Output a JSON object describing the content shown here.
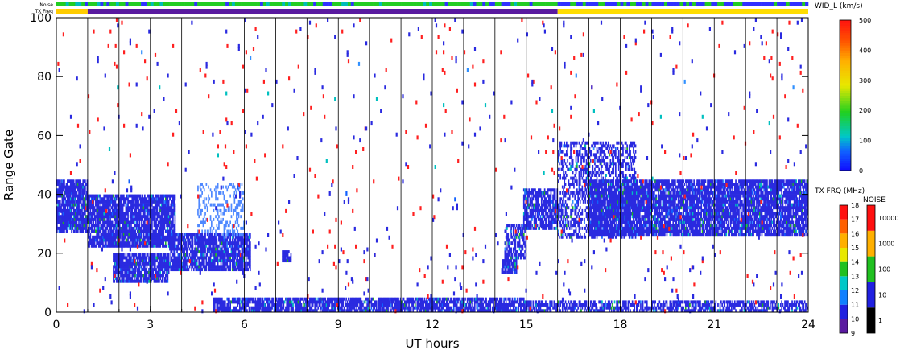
{
  "chart_data": {
    "type": "heatmap",
    "x_label": "UT hours",
    "y_label": "Range Gate",
    "x_range": [
      0,
      24
    ],
    "y_range": [
      0,
      100
    ],
    "x_ticks": [
      0,
      3,
      6,
      9,
      12,
      15,
      18,
      21,
      24
    ],
    "y_ticks": [
      0,
      20,
      40,
      60,
      80,
      100
    ],
    "vertical_hour_lines": [
      1,
      2,
      3,
      4,
      5,
      6,
      7,
      8,
      9,
      10,
      11,
      12,
      13,
      14,
      15,
      16,
      17,
      18,
      19,
      20,
      21,
      22,
      23
    ],
    "top_strips": [
      {
        "label": "Noise",
        "segments": [
          {
            "from": 0,
            "to": 16,
            "color": "mixed-green-blue"
          },
          {
            "from": 16,
            "to": 24,
            "color": "mixed-blue-green"
          }
        ]
      },
      {
        "label": "TX Freq",
        "segments": [
          {
            "from": 0,
            "to": 1,
            "color": "#ffcc00"
          },
          {
            "from": 1,
            "to": 16,
            "color": "#5a1aa0"
          },
          {
            "from": 16,
            "to": 24,
            "color": "#ffdd00"
          }
        ]
      }
    ],
    "scatter_regions": [
      {
        "x_from": 0,
        "x_to": 1,
        "y_from": 27,
        "y_to": 45,
        "color": "#2a2ae0",
        "density": 0.85
      },
      {
        "x_from": 1,
        "x_to": 3.8,
        "y_from": 22,
        "y_to": 40,
        "color": "#2a2ae0",
        "density": 0.85
      },
      {
        "x_from": 1.8,
        "x_to": 3.6,
        "y_from": 10,
        "y_to": 20,
        "color": "#2a2ae0",
        "density": 0.85
      },
      {
        "x_from": 3.6,
        "x_to": 4.8,
        "y_from": 14,
        "y_to": 27,
        "color": "#2a2ae0",
        "density": 0.8
      },
      {
        "x_from": 4.8,
        "x_to": 6.2,
        "y_from": 14,
        "y_to": 27,
        "color": "#2a2ae0",
        "density": 0.8
      },
      {
        "x_from": 4.5,
        "x_to": 6.0,
        "y_from": 26,
        "y_to": 44,
        "color": "#4f88ff",
        "density": 0.3
      },
      {
        "x_from": 7.2,
        "x_to": 7.5,
        "y_from": 17,
        "y_to": 21,
        "color": "#2a2ae0",
        "density": 0.9
      },
      {
        "x_from": 5.0,
        "x_to": 15.0,
        "y_from": 0,
        "y_to": 5,
        "color": "#2a2ae0",
        "density": 0.8
      },
      {
        "x_from": 14.2,
        "x_to": 14.7,
        "y_from": 13,
        "y_to": 18,
        "color": "#2a2ae0",
        "density": 0.9
      },
      {
        "x_from": 14.3,
        "x_to": 15.0,
        "y_from": 18,
        "y_to": 30,
        "color": "#2a2ae0",
        "density": 0.6
      },
      {
        "x_from": 14.9,
        "x_to": 16.0,
        "y_from": 28,
        "y_to": 42,
        "color": "#2a2ae0",
        "density": 0.75
      },
      {
        "x_from": 16.0,
        "x_to": 18.5,
        "y_from": 25,
        "y_to": 58,
        "color": "#2a2ae0",
        "density": 0.45
      },
      {
        "x_from": 17.0,
        "x_to": 24.0,
        "y_from": 26,
        "y_to": 45,
        "color": "#2a2ae0",
        "density": 0.85
      },
      {
        "x_from": 15.0,
        "x_to": 24.0,
        "y_from": 0,
        "y_to": 4,
        "color": "#2a2ae0",
        "density": 0.6
      },
      {
        "x_from": 0,
        "x_to": 24,
        "y_from": 0,
        "y_to": 100,
        "color": "#ff2020",
        "density": 0.004
      },
      {
        "x_from": 0,
        "x_to": 24,
        "y_from": 0,
        "y_to": 100,
        "color": "#2a2ae0",
        "density": 0.006
      }
    ],
    "colorbars": [
      {
        "label": "WID_L (km/s)",
        "min": 0,
        "max": 500,
        "ticks": [
          0,
          100,
          200,
          300,
          400,
          500
        ]
      },
      {
        "label": "TX FRQ (MHz)",
        "ticks": [
          9,
          10,
          11,
          12,
          13,
          14,
          15,
          16,
          17,
          18
        ]
      },
      {
        "label": "NOISE",
        "ticks": [
          1,
          10,
          100,
          1000,
          10000
        ]
      }
    ]
  },
  "labels": {
    "x_label": "UT hours",
    "y_label": "Range Gate",
    "noise_strip_label": "Noise",
    "txfreq_strip_label": "TX Freq",
    "wid_label": "WID_L (km/s)",
    "txfrq_label": "TX FRQ (MHz)",
    "noise_label": "NOISE"
  }
}
